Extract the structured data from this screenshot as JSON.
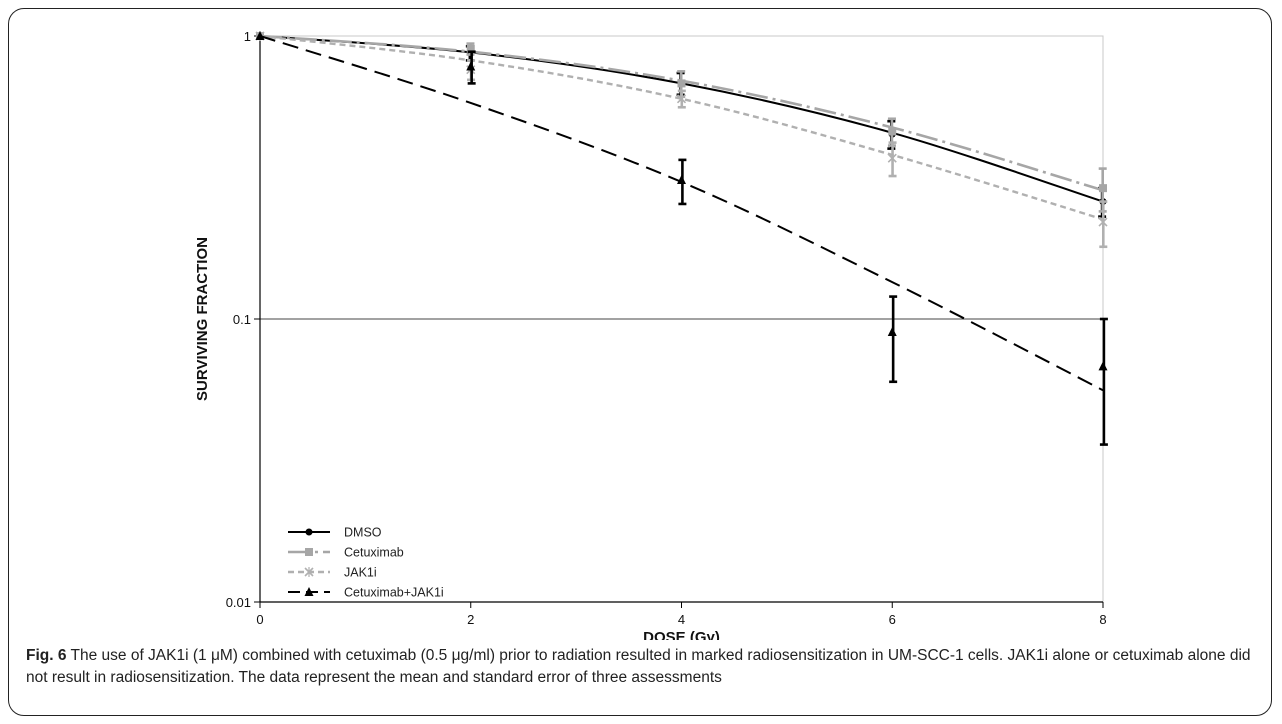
{
  "chart_data": {
    "type": "line",
    "title": "",
    "xlabel": "DOSE (Gy)",
    "ylabel": "SURVIVING FRACTION",
    "xlim": [
      0,
      8
    ],
    "ylim": [
      0.01,
      1
    ],
    "y_scale": "log",
    "x_ticks": [
      "0",
      "2",
      "4",
      "6",
      "8"
    ],
    "y_ticks": [
      "1",
      "0.1",
      "0.01"
    ],
    "gridlines": "horizontal at 0.1",
    "legend_position": "bottom-left",
    "x": [
      0,
      2,
      4,
      6,
      8
    ],
    "series": [
      {
        "name": "DMSO",
        "color": "#000000",
        "line_style": "solid",
        "marker": "circle",
        "values": [
          1,
          0.87,
          0.68,
          0.45,
          0.26
        ],
        "errors": [
          0,
          0.05,
          0.06,
          0.05,
          0.03
        ],
        "fit": [
          1,
          0.875,
          0.68,
          0.455,
          0.26
        ]
      },
      {
        "name": "Cetuximab",
        "color": "#a6a6a6",
        "line_style": "dash-dot",
        "marker": "square",
        "values": [
          1,
          0.9,
          0.68,
          0.46,
          0.29
        ],
        "errors": [
          0,
          0.04,
          0.07,
          0.05,
          0.05
        ],
        "fit": [
          1,
          0.88,
          0.695,
          0.475,
          0.285
        ]
      },
      {
        "name": "JAK1i",
        "color": "#b0b0b0",
        "line_style": "short-dash",
        "marker": "x",
        "values": [
          1,
          0.76,
          0.6,
          0.37,
          0.22
        ],
        "errors": [
          0,
          0.06,
          0.04,
          0.05,
          0.04
        ],
        "fit": [
          1,
          0.82,
          0.6,
          0.38,
          0.225
        ]
      },
      {
        "name": "Cetuximab+JAK1i",
        "color": "#000000",
        "line_style": "long-dash",
        "marker": "triangle",
        "values": [
          1,
          0.78,
          0.31,
          0.09,
          0.068
        ],
        "errors": [
          0,
          0.1,
          0.055,
          0.03,
          0.032
        ],
        "fit": [
          1,
          0.58,
          0.305,
          0.135,
          0.056
        ]
      }
    ]
  },
  "caption": {
    "label": "Fig. 6",
    "text": " The use of JAK1i (1 μM) combined with cetuximab (0.5 μg/ml) prior to radiation resulted in marked radiosensitization in UM-SCC-1 cells. JAK1i alone or cetuximab alone did not result in radiosensitization. The data represent the mean and standard error of three assessments"
  }
}
